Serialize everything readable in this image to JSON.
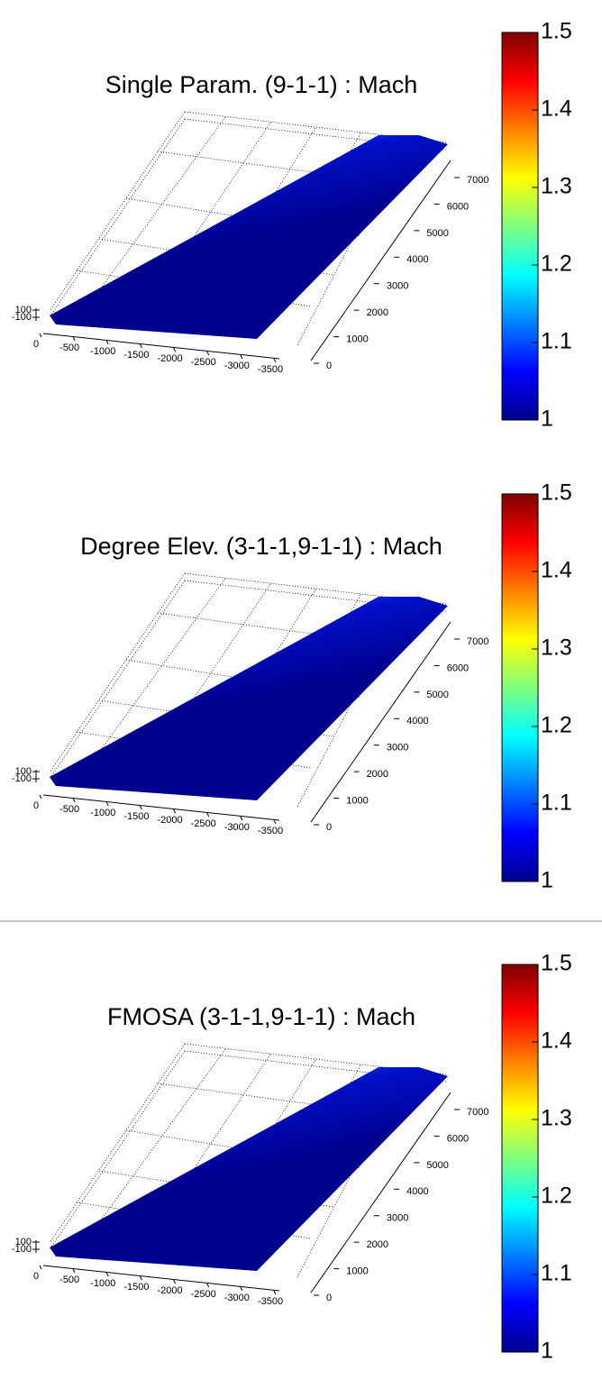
{
  "chart_data": [
    {
      "type": "surface",
      "title": "Single Param. (9-1-1) : Mach",
      "xlim": [
        0,
        -3500
      ],
      "xticks": [
        0,
        -500,
        -1000,
        -1500,
        -2000,
        -2500,
        -3000,
        -3500
      ],
      "ylim": [
        0,
        7000
      ],
      "yticks": [
        0,
        1000,
        2000,
        3000,
        4000,
        5000,
        6000,
        7000
      ],
      "zlim": [
        -100,
        100
      ],
      "zticks": [
        -100,
        100
      ],
      "colormap": "jet",
      "clim": [
        1,
        1.5
      ],
      "cticks": [
        1,
        1.1,
        1.2,
        1.3,
        1.4,
        1.5
      ]
    },
    {
      "type": "surface",
      "title": "Degree Elev. (3-1-1,9-1-1) : Mach",
      "xlim": [
        0,
        -3500
      ],
      "xticks": [
        0,
        -500,
        -1000,
        -1500,
        -2000,
        -2500,
        -3000,
        -3500
      ],
      "ylim": [
        0,
        7000
      ],
      "yticks": [
        0,
        1000,
        2000,
        3000,
        4000,
        5000,
        6000,
        7000
      ],
      "zlim": [
        -100,
        100
      ],
      "zticks": [
        -100,
        100
      ],
      "colormap": "jet",
      "clim": [
        1,
        1.5
      ],
      "cticks": [
        1,
        1.1,
        1.2,
        1.3,
        1.4,
        1.5
      ]
    },
    {
      "type": "surface",
      "title": "FMOSA (3-1-1,9-1-1) : Mach",
      "xlim": [
        0,
        -3500
      ],
      "xticks": [
        0,
        -500,
        -1000,
        -1500,
        -2000,
        -2500,
        -3000,
        -3500
      ],
      "ylim": [
        0,
        7000
      ],
      "yticks": [
        0,
        1000,
        2000,
        3000,
        4000,
        5000,
        6000,
        7000
      ],
      "zlim": [
        -100,
        100
      ],
      "zticks": [
        -100,
        100
      ],
      "colormap": "jet",
      "clim": [
        1,
        1.5
      ],
      "cticks": [
        1,
        1.1,
        1.2,
        1.3,
        1.4,
        1.5
      ]
    }
  ]
}
